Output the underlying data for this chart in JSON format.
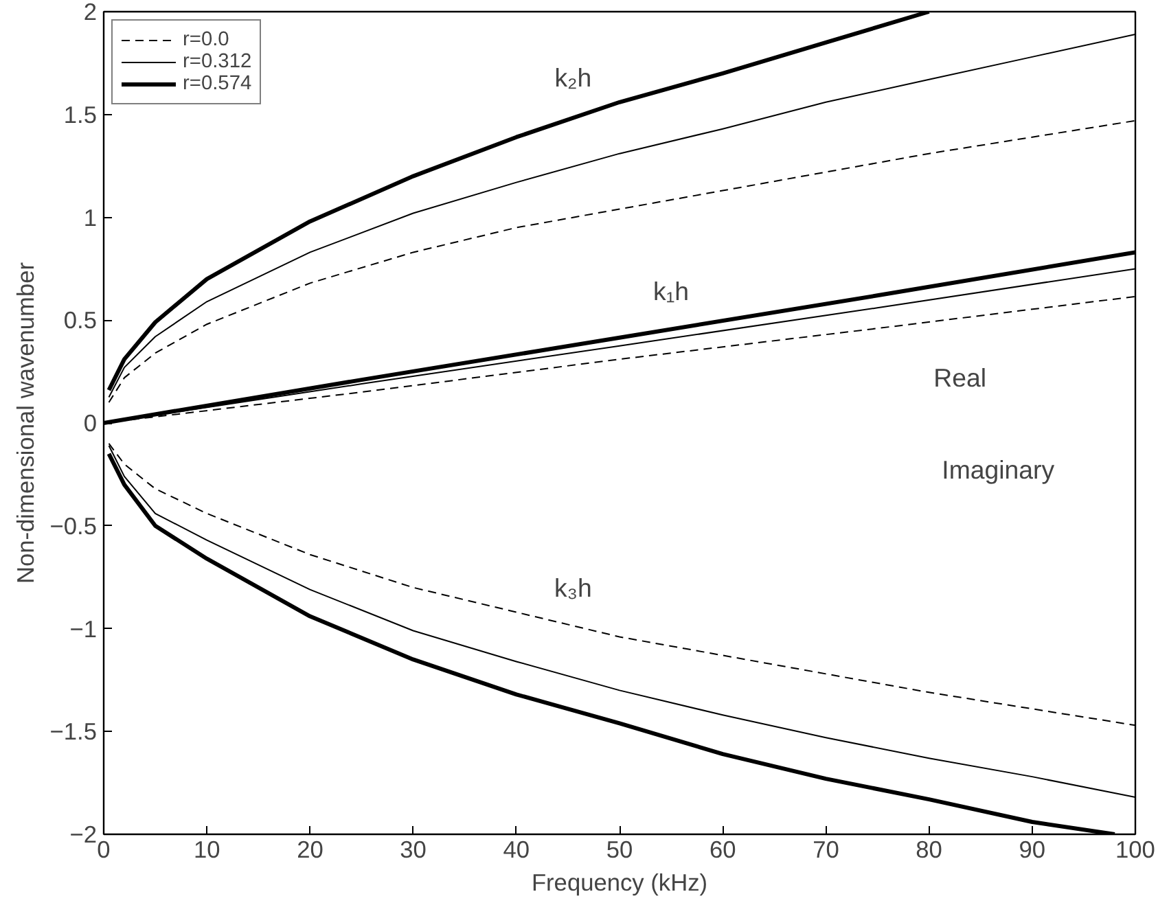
{
  "chart_data": {
    "type": "line",
    "xlabel": "Frequency (kHz)",
    "ylabel": "Non-dimensional wavenumber",
    "xlim": [
      0,
      100
    ],
    "ylim": [
      -2,
      2
    ],
    "xticks": [
      0,
      10,
      20,
      30,
      40,
      50,
      60,
      70,
      80,
      90,
      100
    ],
    "yticks": [
      -2,
      -1.5,
      -1,
      -0.5,
      0,
      0.5,
      1,
      1.5,
      2
    ],
    "grid": false,
    "legend": "top left",
    "series": [
      {
        "name": "r=0.0",
        "color": "#000000",
        "line_style": "dashed",
        "x": [
          0.5,
          2,
          5,
          10,
          20,
          30,
          40,
          50,
          60,
          70,
          80,
          90,
          100
        ],
        "values": [
          0.1,
          0.22,
          0.34,
          0.48,
          0.68,
          0.83,
          0.95,
          1.04,
          1.13,
          1.22,
          1.31,
          1.39,
          1.47
        ]
      },
      {
        "name": "r=0.312",
        "color": "#000000",
        "line_style": "solid",
        "x": [
          0.5,
          2,
          5,
          10,
          20,
          30,
          40,
          50,
          60,
          70,
          80,
          90,
          100
        ],
        "values": [
          0.125,
          0.27,
          0.42,
          0.59,
          0.83,
          1.02,
          1.17,
          1.31,
          1.43,
          1.56,
          1.67,
          1.78,
          1.89
        ]
      },
      {
        "name": "r=0.574",
        "color": "#000000",
        "line_style": "solid",
        "x": [
          0.5,
          2,
          5,
          10,
          20,
          30,
          40,
          50,
          60,
          70,
          80
        ],
        "values": [
          0.16,
          0.31,
          0.49,
          0.7,
          0.98,
          1.2,
          1.39,
          1.56,
          1.7,
          1.85,
          2.0
        ]
      },
      {
        "color": "#000000",
        "line_style": "dashed",
        "x": [
          0,
          25,
          50,
          75,
          100
        ],
        "values": [
          0,
          0.15,
          0.31,
          0.46,
          0.615
        ]
      },
      {
        "color": "#000000",
        "line_style": "solid",
        "x": [
          0,
          25,
          50,
          75,
          100
        ],
        "values": [
          0,
          0.19,
          0.375,
          0.56,
          0.75
        ]
      },
      {
        "color": "#000000",
        "line_style": "solid",
        "x": [
          0,
          25,
          50,
          75,
          100
        ],
        "values": [
          0,
          0.21,
          0.415,
          0.62,
          0.83
        ]
      },
      {
        "color": "#000000",
        "line_style": "dashed",
        "x": [
          0.5,
          2,
          5,
          10,
          20,
          30,
          40,
          50,
          60,
          70,
          80,
          90,
          100
        ],
        "values": [
          -0.1,
          -0.2,
          -0.32,
          -0.44,
          -0.64,
          -0.8,
          -0.92,
          -1.04,
          -1.13,
          -1.22,
          -1.31,
          -1.39,
          -1.47
        ]
      },
      {
        "color": "#000000",
        "line_style": "solid",
        "x": [
          0.5,
          2,
          5,
          10,
          20,
          30,
          40,
          50,
          60,
          70,
          80,
          90,
          100
        ],
        "values": [
          -0.11,
          -0.26,
          -0.44,
          -0.57,
          -0.81,
          -1.01,
          -1.16,
          -1.3,
          -1.42,
          -1.53,
          -1.63,
          -1.72,
          -1.82
        ]
      },
      {
        "color": "#000000",
        "line_style": "solid",
        "x": [
          0.5,
          2,
          5,
          10,
          20,
          30,
          40,
          50,
          60,
          70,
          80,
          90,
          98
        ],
        "values": [
          -0.15,
          -0.3,
          -0.5,
          -0.66,
          -0.94,
          -1.15,
          -1.32,
          -1.46,
          -1.61,
          -1.73,
          -1.83,
          -1.94,
          -2.0
        ]
      }
    ],
    "annotations": [
      "k₂h",
      "k₁h",
      "k₃h",
      "Real",
      "Imaginary"
    ]
  }
}
